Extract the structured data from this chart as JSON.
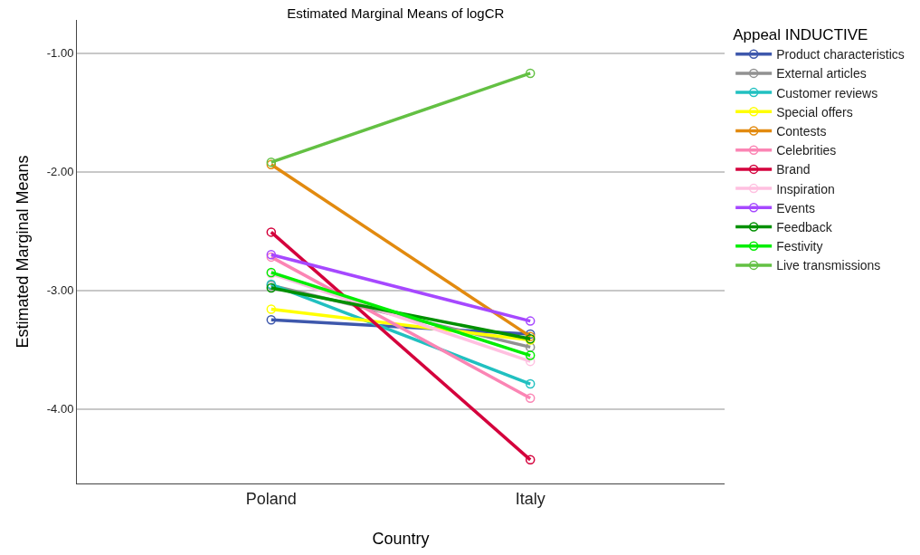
{
  "chart_data": {
    "type": "line",
    "title": "Estimated Marginal Means of logCR",
    "xlabel": "Country",
    "ylabel": "Estimated Marginal Means",
    "legend_title": "Appeal INDUCTIVE",
    "categories": [
      "Poland",
      "Italy"
    ],
    "series": [
      {
        "name": "Product characteristics",
        "color": "#3e58ac",
        "values": [
          -3.25,
          -3.37
        ]
      },
      {
        "name": "External articles",
        "color": "#919191",
        "values": [
          -2.96,
          -3.48
        ]
      },
      {
        "name": "Customer reviews",
        "color": "#21c0c0",
        "values": [
          -2.95,
          -3.79
        ]
      },
      {
        "name": "Special offers",
        "color": "#ffff00",
        "values": [
          -3.16,
          -3.42
        ]
      },
      {
        "name": "Contests",
        "color": "#e28a0f",
        "values": [
          -1.94,
          -3.39
        ]
      },
      {
        "name": "Celebrities",
        "color": "#fb85b4",
        "values": [
          -2.72,
          -3.91
        ]
      },
      {
        "name": "Brand",
        "color": "#d4003c",
        "values": [
          -2.51,
          -4.43
        ]
      },
      {
        "name": "Inspiration",
        "color": "#ffc0e0",
        "values": [
          -2.86,
          -3.6
        ]
      },
      {
        "name": "Events",
        "color": "#a648ff",
        "values": [
          -2.7,
          -3.26
        ]
      },
      {
        "name": "Feedback",
        "color": "#009000",
        "values": [
          -2.98,
          -3.41
        ]
      },
      {
        "name": "Festivity",
        "color": "#00ee00",
        "values": [
          -2.85,
          -3.55
        ]
      },
      {
        "name": "Live transmissions",
        "color": "#63c043",
        "values": [
          -1.92,
          -1.17
        ]
      }
    ],
    "ylim": [
      -4.63,
      -0.72
    ],
    "yticks": [
      {
        "value": -1,
        "label": "-1.00"
      },
      {
        "value": -2,
        "label": "-2.00"
      },
      {
        "value": -3,
        "label": "-3.00"
      },
      {
        "value": -4,
        "label": "-4.00"
      }
    ],
    "grid": "y",
    "legend": "right",
    "marker": "circle",
    "line_style": "solid"
  }
}
